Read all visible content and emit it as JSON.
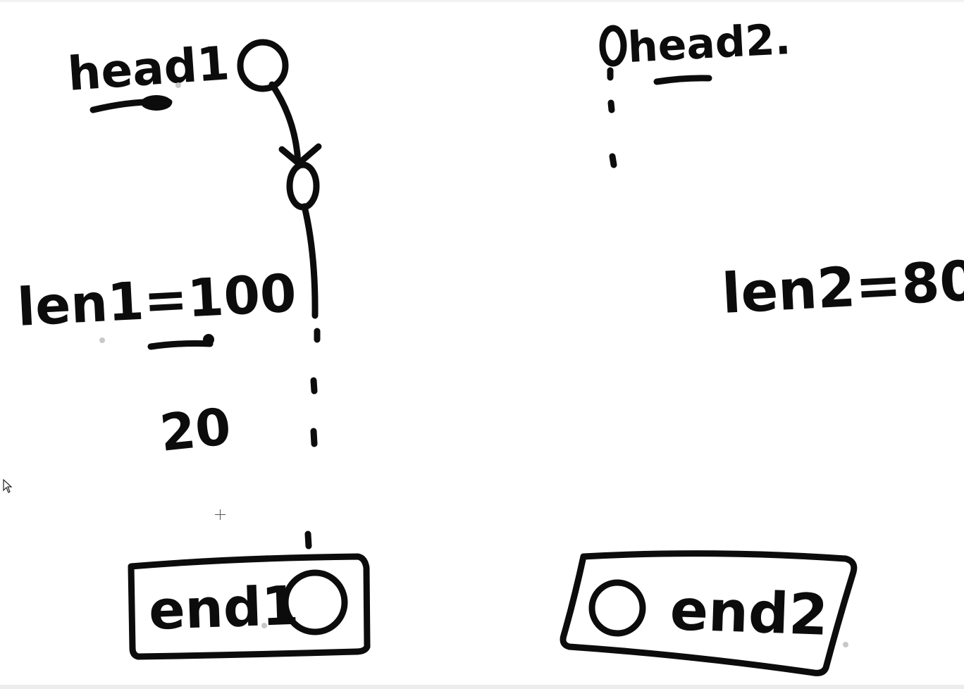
{
  "list1": {
    "head_label": "head1",
    "length_label": "len1=100",
    "gap_label": "20",
    "end_label": "end1"
  },
  "list2": {
    "head_label": "head2.",
    "length_label": "len2=80",
    "end_label": "end2"
  },
  "colors": {
    "ink": "#0c0c0c",
    "background": "#ffffff"
  },
  "icons": {
    "pointer": "mouse-pointer-icon",
    "crosshair": "crosshair-icon"
  }
}
